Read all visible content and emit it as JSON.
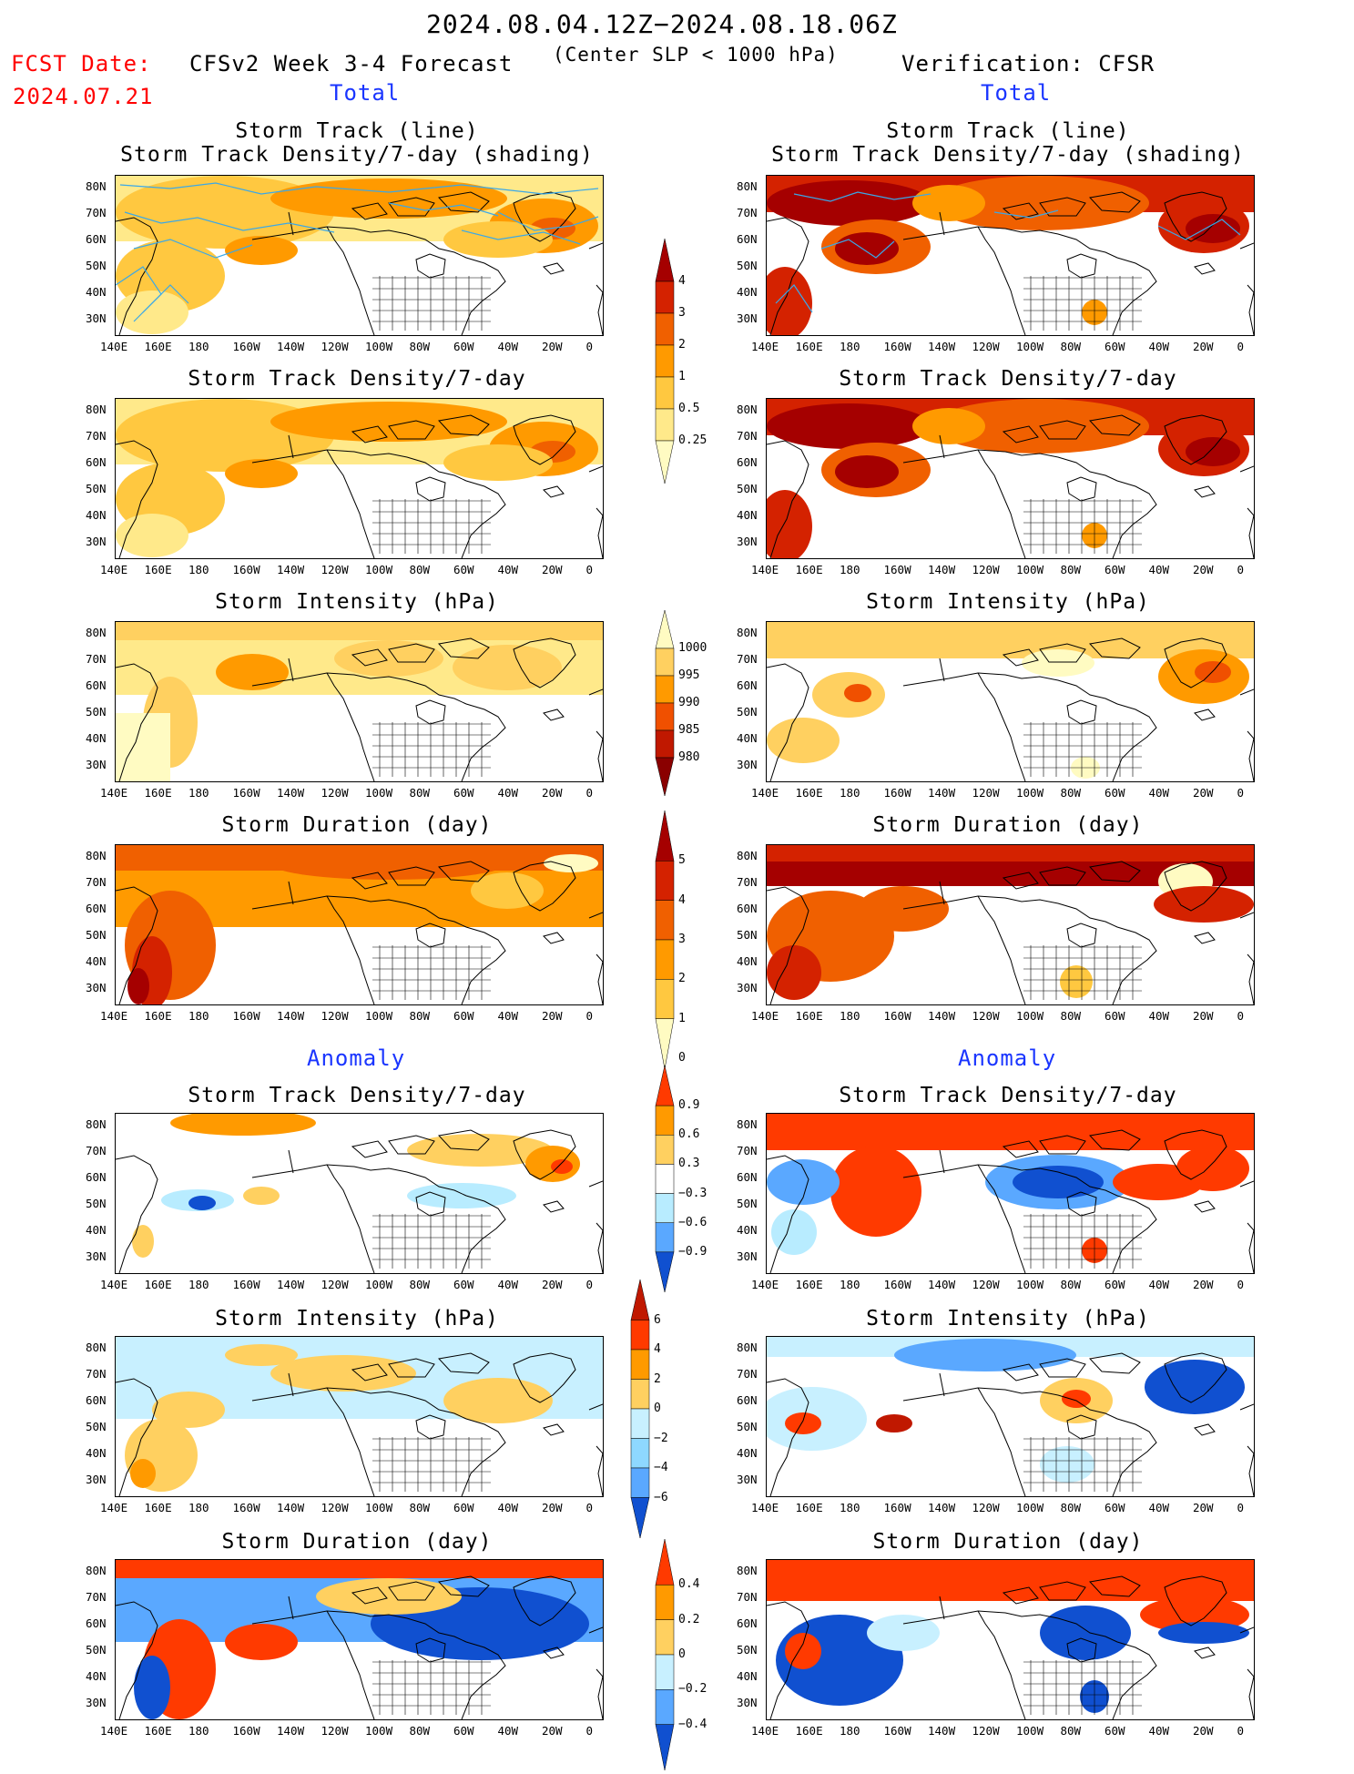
{
  "header": {
    "date_range": "2024.08.04.12Z−2024.08.18.06Z",
    "criterion": "(Center SLP < 1000 hPa)",
    "fcst_date_label": "FCST Date:",
    "fcst_date_value": "2024.07.21",
    "model_title": "CFSv2 Week 3-4 Forecast",
    "verification": "Verification: CFSR"
  },
  "sections": {
    "total_left": "Total",
    "total_right": "Total",
    "anomaly_left": "Anomaly",
    "anomaly_right": "Anomaly"
  },
  "panels": {
    "track_line_1": "Storm Track (line)",
    "track_line_2": "Storm Track Density/7-day (shading)",
    "density": "Storm Track Density/7-day",
    "intensity": "Storm Intensity (hPa)",
    "duration": "Storm Duration (day)"
  },
  "axes": {
    "lon": [
      "140E",
      "160E",
      "180",
      "160W",
      "140W",
      "120W",
      "100W",
      "80W",
      "60W",
      "40W",
      "20W",
      "0"
    ],
    "lat": [
      "80N",
      "70N",
      "60N",
      "50N",
      "40N",
      "30N"
    ]
  },
  "colorbars": {
    "density_total": {
      "labels": [
        "4",
        "3",
        "2",
        "1",
        "0.5",
        "0.25"
      ],
      "colors": [
        "#a50000",
        "#d42200",
        "#f06000",
        "#ff9a00",
        "#ffc840",
        "#ffe98a",
        "#fffbc2"
      ]
    },
    "intensity_total": {
      "labels": [
        "1000",
        "995",
        "990",
        "985",
        "980"
      ],
      "colors": [
        "#fffbc2",
        "#ffd060",
        "#ff9a00",
        "#f05000",
        "#c01800",
        "#8a0000"
      ]
    },
    "duration_total": {
      "labels": [
        "5",
        "4",
        "3",
        "2",
        "1",
        "0"
      ],
      "colors": [
        "#a50000",
        "#d42200",
        "#f06000",
        "#ff9a00",
        "#ffc840",
        "#fffbc2"
      ]
    },
    "density_anom": {
      "labels": [
        "0.9",
        "0.6",
        "0.3",
        "−0.3",
        "−0.6",
        "−0.9"
      ],
      "colors": [
        "#ff3a00",
        "#ff9a00",
        "#ffd060",
        "#ffffff",
        "#b8ecff",
        "#5aa8ff",
        "#1050d0"
      ]
    },
    "intensity_anom": {
      "labels": [
        "6",
        "4",
        "2",
        "0",
        "−2",
        "−4",
        "−6"
      ],
      "colors": [
        "#c01800",
        "#ff3a00",
        "#ff9a00",
        "#ffd060",
        "#c8f0ff",
        "#8ed8ff",
        "#5aa8ff",
        "#1050d0"
      ]
    },
    "duration_anom": {
      "labels": [
        "0.4",
        "0.2",
        "0",
        "−0.2",
        "−0.4"
      ],
      "colors": [
        "#ff3a00",
        "#ff9a00",
        "#ffd060",
        "#c8f0ff",
        "#5aa8ff",
        "#1050d0"
      ]
    }
  },
  "palette": {
    "land_line": "#000000",
    "track_line": "#3aa8e8",
    "header_red": "#ff0000",
    "section_blue": "#1a35ff"
  }
}
